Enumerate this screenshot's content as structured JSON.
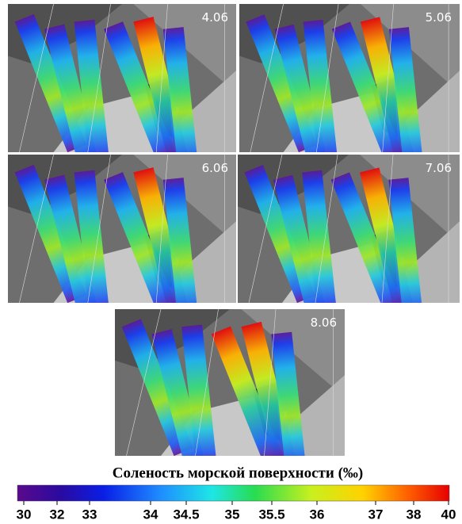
{
  "panels": [
    {
      "label": "4.06"
    },
    {
      "label": "5.06"
    },
    {
      "label": "6.06"
    },
    {
      "label": "7.06"
    },
    {
      "label": "8.06"
    }
  ],
  "colorbar": {
    "title": "Соленость морской поверхности (‰)",
    "ticks": [
      30,
      32,
      33,
      34,
      34.5,
      35,
      35.5,
      36,
      37,
      38,
      40
    ]
  }
}
